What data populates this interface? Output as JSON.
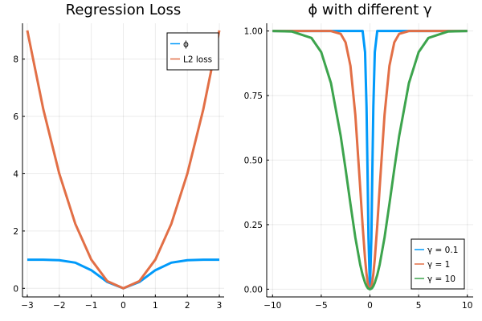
{
  "chart_data": [
    {
      "type": "line",
      "title": "Regression Loss",
      "xlabel": "",
      "ylabel": "",
      "xlim": [
        -3.15,
        3.15
      ],
      "ylim": [
        -0.3,
        9.25
      ],
      "xticks": [
        -3,
        -2,
        -1,
        0,
        1,
        2,
        3
      ],
      "xtick_labels": [
        "−3",
        "−2",
        "−1",
        "0",
        "1",
        "2",
        "3"
      ],
      "yticks": [
        0,
        2,
        4,
        6,
        8
      ],
      "ytick_labels": [
        "0",
        "2",
        "4",
        "6",
        "8"
      ],
      "grid": true,
      "legend_position": "top-right",
      "x": [
        -3,
        -2.5,
        -2,
        -1.5,
        -1,
        -0.5,
        0,
        0.5,
        1,
        1.5,
        2,
        2.5,
        3
      ],
      "series": [
        {
          "name": "ϕ",
          "color": "#009AFA",
          "values": [
            1.0,
            0.998,
            0.982,
            0.895,
            0.632,
            0.221,
            0.0,
            0.221,
            0.632,
            0.895,
            0.982,
            0.998,
            1.0
          ]
        },
        {
          "name": "L2 loss",
          "color": "#E26F46",
          "values": [
            9.0,
            6.25,
            4.0,
            2.25,
            1.0,
            0.25,
            0.0,
            0.25,
            1.0,
            2.25,
            4.0,
            6.25,
            9.0
          ]
        }
      ]
    },
    {
      "type": "line",
      "title": "ϕ with different γ",
      "xlabel": "",
      "ylabel": "",
      "xlim": [
        -10.6,
        10.6
      ],
      "ylim": [
        -0.03,
        1.03
      ],
      "xticks": [
        -10,
        -5,
        0,
        5,
        10
      ],
      "xtick_labels": [
        "−10",
        "−5",
        "0",
        "5",
        "10"
      ],
      "yticks": [
        0,
        0.25,
        0.5,
        0.75,
        1
      ],
      "ytick_labels": [
        "0.00",
        "0.25",
        "0.50",
        "0.75",
        "1.00"
      ],
      "grid": true,
      "legend_position": "bottom-right",
      "x": [
        -10,
        -8,
        -6,
        -5,
        -4,
        -3,
        -2.5,
        -2,
        -1.5,
        -1,
        -0.75,
        -0.5,
        -0.35,
        -0.25,
        -0.15,
        0,
        0.15,
        0.25,
        0.35,
        0.5,
        0.75,
        1,
        1.5,
        2,
        2.5,
        3,
        4,
        5,
        6,
        8,
        10
      ],
      "series": [
        {
          "name": "γ = 0.1",
          "color": "#009AFA",
          "values": [
            1.0,
            1.0,
            1.0,
            1.0,
            1.0,
            1.0,
            1.0,
            1.0,
            1.0,
            1.0,
            1.0,
            0.918,
            0.706,
            0.465,
            0.2,
            0.0,
            0.2,
            0.465,
            0.706,
            0.918,
            1.0,
            1.0,
            1.0,
            1.0,
            1.0,
            1.0,
            1.0,
            1.0,
            1.0,
            1.0,
            1.0
          ]
        },
        {
          "name": "γ = 1",
          "color": "#E26F46",
          "values": [
            1.0,
            1.0,
            1.0,
            1.0,
            1.0,
            0.989,
            0.956,
            0.865,
            0.675,
            0.393,
            0.245,
            0.118,
            0.059,
            0.031,
            0.011,
            0.0,
            0.011,
            0.031,
            0.059,
            0.118,
            0.245,
            0.393,
            0.675,
            0.865,
            0.956,
            0.989,
            1.0,
            1.0,
            1.0,
            1.0,
            1.0
          ]
        },
        {
          "name": "γ = 10",
          "color": "#3DA44D",
          "values": [
            1.0,
            0.998,
            0.973,
            0.918,
            0.798,
            0.593,
            0.465,
            0.33,
            0.2,
            0.095,
            0.055,
            0.025,
            0.012,
            0.006,
            0.002,
            0.0,
            0.002,
            0.006,
            0.012,
            0.025,
            0.055,
            0.095,
            0.2,
            0.33,
            0.465,
            0.593,
            0.798,
            0.918,
            0.973,
            0.998,
            1.0
          ]
        }
      ]
    }
  ]
}
